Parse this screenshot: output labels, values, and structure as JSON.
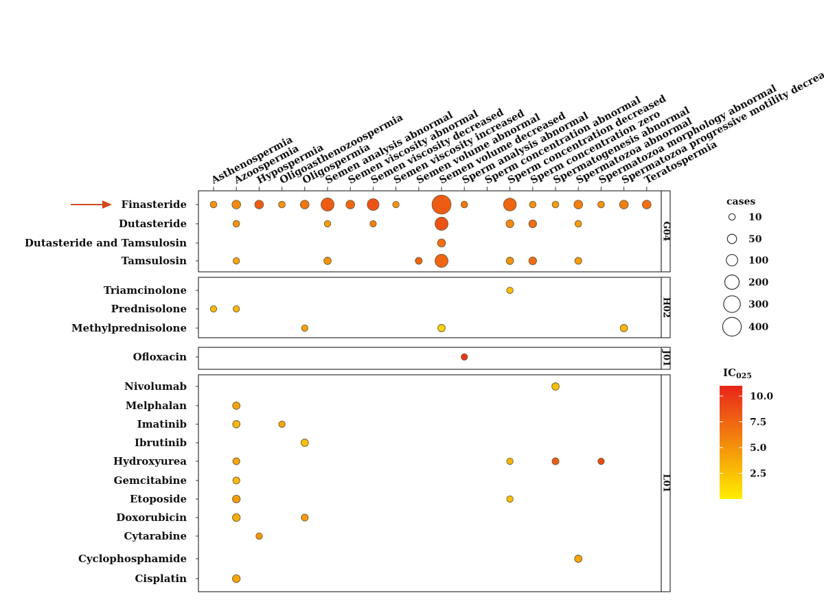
{
  "chart_data": {
    "type": "bubble-grid",
    "x_categories": [
      "Asthenospermia",
      "Azoospermia",
      "Hypospermia",
      "Oligoasthenozoospermia",
      "Oligospermia",
      "Semen analysis abnormal",
      "Semen viscosity abnormal",
      "Semen viscosity decreased",
      "Semen viscosity increased",
      "Semen volume abnormal",
      "Semen volume decreased",
      "Sperm analysis abnormal",
      "Sperm concentration abnormal",
      "Sperm concentration decreased",
      "Sperm concentration zero",
      "Spermatogenesis abnormal",
      "Spermatozoa abnormal",
      "Spermatozoa morphology abnormal",
      "Spermatozoa progressive motility decreased",
      "Teratospermia"
    ],
    "highlighted_row": "Finasteride",
    "panels": [
      {
        "label": "G04",
        "rows": [
          "Finasteride",
          "Dutasteride",
          "Dutasteride and Tamsulosin",
          "Tamsulosin"
        ]
      },
      {
        "label": "H02",
        "rows": [
          "Triamcinolone",
          "Prednisolone",
          "Methylprednisolone"
        ]
      },
      {
        "label": "J01",
        "rows": [
          "Ofloxacin"
        ]
      },
      {
        "label": "L01",
        "rows": [
          "Nivolumab",
          "Melphalan",
          "Imatinib",
          "Ibrutinib",
          "Hydroxyurea",
          "Gemcitabine",
          "Etoposide",
          "Doxorubicin",
          "Cytarabine",
          "Cyclophosphamide",
          "Cisplatin"
        ]
      }
    ],
    "points": [
      {
        "row": "Finasteride",
        "col": "Asthenospermia",
        "cases": 12,
        "ic025": 5
      },
      {
        "row": "Finasteride",
        "col": "Azoospermia",
        "cases": 40,
        "ic025": 5.5
      },
      {
        "row": "Finasteride",
        "col": "Hypospermia",
        "cases": 40,
        "ic025": 8
      },
      {
        "row": "Finasteride",
        "col": "Oligoasthenozoospermia",
        "cases": 12,
        "ic025": 5
      },
      {
        "row": "Finasteride",
        "col": "Oligospermia",
        "cases": 40,
        "ic025": 6.5
      },
      {
        "row": "Finasteride",
        "col": "Semen analysis abnormal",
        "cases": 150,
        "ic025": 8
      },
      {
        "row": "Finasteride",
        "col": "Semen viscosity abnormal",
        "cases": 40,
        "ic025": 7.5
      },
      {
        "row": "Finasteride",
        "col": "Semen viscosity decreased",
        "cases": 110,
        "ic025": 8.5
      },
      {
        "row": "Finasteride",
        "col": "Semen viscosity increased",
        "cases": 10,
        "ic025": 5
      },
      {
        "row": "Finasteride",
        "col": "Semen volume decreased",
        "cases": 420,
        "ic025": 8
      },
      {
        "row": "Finasteride",
        "col": "Sperm analysis abnormal",
        "cases": 12,
        "ic025": 6.5
      },
      {
        "row": "Finasteride",
        "col": "Sperm concentration decreased",
        "cases": 140,
        "ic025": 7.5
      },
      {
        "row": "Finasteride",
        "col": "Sperm concentration zero",
        "cases": 12,
        "ic025": 5
      },
      {
        "row": "Finasteride",
        "col": "Spermatogenesis abnormal",
        "cases": 12,
        "ic025": 4.5
      },
      {
        "row": "Finasteride",
        "col": "Spermatozoa abnormal",
        "cases": 40,
        "ic025": 6
      },
      {
        "row": "Finasteride",
        "col": "Spermatozoa morphology abnormal",
        "cases": 12,
        "ic025": 5
      },
      {
        "row": "Finasteride",
        "col": "Spermatozoa progressive motility decreased",
        "cases": 40,
        "ic025": 6
      },
      {
        "row": "Finasteride",
        "col": "Teratospermia",
        "cases": 40,
        "ic025": 7
      },
      {
        "row": "Dutasteride",
        "col": "Azoospermia",
        "cases": 12,
        "ic025": 5
      },
      {
        "row": "Dutasteride",
        "col": "Semen analysis abnormal",
        "cases": 10,
        "ic025": 4.5
      },
      {
        "row": "Dutasteride",
        "col": "Semen viscosity decreased",
        "cases": 10,
        "ic025": 6
      },
      {
        "row": "Dutasteride",
        "col": "Semen volume decreased",
        "cases": 150,
        "ic025": 8.5
      },
      {
        "row": "Dutasteride",
        "col": "Sperm concentration decreased",
        "cases": 25,
        "ic025": 5.5
      },
      {
        "row": "Dutasteride",
        "col": "Sperm concentration zero",
        "cases": 25,
        "ic025": 7
      },
      {
        "row": "Dutasteride",
        "col": "Spermatozoa abnormal",
        "cases": 12,
        "ic025": 4.5
      },
      {
        "row": "Dutasteride and Tamsulosin",
        "col": "Semen volume decreased",
        "cases": 30,
        "ic025": 7
      },
      {
        "row": "Tamsulosin",
        "col": "Azoospermia",
        "cases": 10,
        "ic025": 4
      },
      {
        "row": "Tamsulosin",
        "col": "Semen analysis abnormal",
        "cases": 20,
        "ic025": 5
      },
      {
        "row": "Tamsulosin",
        "col": "Semen volume abnormal",
        "cases": 15,
        "ic025": 7.5
      },
      {
        "row": "Tamsulosin",
        "col": "Semen volume decreased",
        "cases": 150,
        "ic025": 7.5
      },
      {
        "row": "Tamsulosin",
        "col": "Sperm concentration decreased",
        "cases": 20,
        "ic025": 5
      },
      {
        "row": "Tamsulosin",
        "col": "Sperm concentration zero",
        "cases": 25,
        "ic025": 7
      },
      {
        "row": "Tamsulosin",
        "col": "Spermatozoa abnormal",
        "cases": 15,
        "ic025": 4.5
      },
      {
        "row": "Triamcinolone",
        "col": "Sperm concentration decreased",
        "cases": 10,
        "ic025": 2.5
      },
      {
        "row": "Prednisolone",
        "col": "Asthenospermia",
        "cases": 10,
        "ic025": 3
      },
      {
        "row": "Prednisolone",
        "col": "Azoospermia",
        "cases": 10,
        "ic025": 3
      },
      {
        "row": "Methylprednisolone",
        "col": "Oligospermia",
        "cases": 10,
        "ic025": 4
      },
      {
        "row": "Methylprednisolone",
        "col": "Semen volume decreased",
        "cases": 20,
        "ic025": 1.5
      },
      {
        "row": "Methylprednisolone",
        "col": "Spermatozoa progressive motility decreased",
        "cases": 20,
        "ic025": 3
      },
      {
        "row": "Ofloxacin",
        "col": "Sperm analysis abnormal",
        "cases": 10,
        "ic025": 10
      },
      {
        "row": "Nivolumab",
        "col": "Spermatogenesis abnormal",
        "cases": 20,
        "ic025": 2.5
      },
      {
        "row": "Melphalan",
        "col": "Azoospermia",
        "cases": 20,
        "ic025": 4
      },
      {
        "row": "Imatinib",
        "col": "Azoospermia",
        "cases": 20,
        "ic025": 3
      },
      {
        "row": "Imatinib",
        "col": "Oligoasthenozoospermia",
        "cases": 10,
        "ic025": 4
      },
      {
        "row": "Ibrutinib",
        "col": "Oligospermia",
        "cases": 20,
        "ic025": 2.5
      },
      {
        "row": "Hydroxyurea",
        "col": "Azoospermia",
        "cases": 15,
        "ic025": 4
      },
      {
        "row": "Hydroxyurea",
        "col": "Sperm concentration decreased",
        "cases": 10,
        "ic025": 3
      },
      {
        "row": "Hydroxyurea",
        "col": "Spermatogenesis abnormal",
        "cases": 15,
        "ic025": 8
      },
      {
        "row": "Hydroxyurea",
        "col": "Spermatozoa morphology abnormal",
        "cases": 10,
        "ic025": 9
      },
      {
        "row": "Gemcitabine",
        "col": "Azoospermia",
        "cases": 15,
        "ic025": 3
      },
      {
        "row": "Etoposide",
        "col": "Azoospermia",
        "cases": 25,
        "ic025": 4.5
      },
      {
        "row": "Etoposide",
        "col": "Sperm concentration decreased",
        "cases": 10,
        "ic025": 2.5
      },
      {
        "row": "Doxorubicin",
        "col": "Azoospermia",
        "cases": 25,
        "ic025": 3.5
      },
      {
        "row": "Doxorubicin",
        "col": "Oligospermia",
        "cases": 15,
        "ic025": 4.5
      },
      {
        "row": "Cytarabine",
        "col": "Hypospermia",
        "cases": 10,
        "ic025": 5
      },
      {
        "row": "Cyclophosphamide",
        "col": "Spermatozoa abnormal",
        "cases": 20,
        "ic025": 4
      },
      {
        "row": "Cisplatin",
        "col": "Azoospermia",
        "cases": 25,
        "ic025": 4
      }
    ],
    "size_legend": {
      "title": "cases",
      "values": [
        10,
        50,
        100,
        200,
        300,
        400
      ]
    },
    "color_legend": {
      "title": "IC025",
      "title_main": "IC",
      "title_sub": "025",
      "min": 0,
      "max": 11,
      "ticks": [
        2.5,
        5.0,
        7.5,
        10.0
      ],
      "tick_labels": [
        "2.5",
        "5.0",
        "7.5",
        "10.0"
      ],
      "low_color": "#ffee00",
      "high_color": "#e8251a"
    }
  }
}
